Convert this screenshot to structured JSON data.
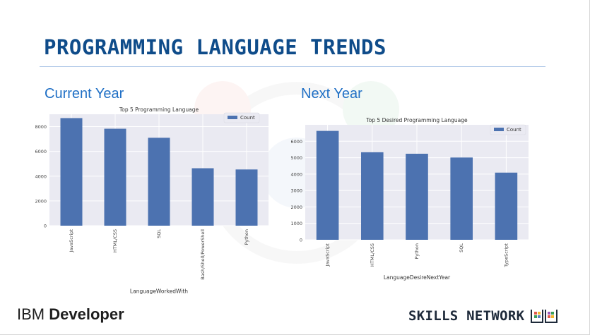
{
  "slide": {
    "title": "PROGRAMMING LANGUAGE TRENDS",
    "title_color": "#0f4c8a",
    "accent_color": "#1f6fc5",
    "left_label": "Current Year",
    "right_label": "Next Year"
  },
  "footer": {
    "brand_ibm": "IBM",
    "brand_developer": "Developer",
    "skills_network": "SKILLS NETWORK",
    "logo_icon": "skills-network-book-icon"
  },
  "chart_data": [
    {
      "type": "bar",
      "title": "Top 5 Programming Language",
      "xlabel": "LanguageWorkedWith",
      "ylabel": "",
      "categories": [
        "JavaScript",
        "HTML/CSS",
        "SQL",
        "Bash/Shell/PowerShell",
        "Python"
      ],
      "series": [
        {
          "name": "Count",
          "values": [
            8690,
            7830,
            7100,
            4640,
            4540
          ]
        }
      ],
      "ylim": [
        0,
        9000
      ],
      "yticks": [
        0,
        2000,
        4000,
        6000,
        8000
      ],
      "grid": true,
      "legend": "top-right",
      "bar_color": "#4c72b0",
      "background": "#eaeaf2"
    },
    {
      "type": "bar",
      "title": "Top 5 Desired Programming Language",
      "xlabel": "LanguageDesireNextYear",
      "ylabel": "",
      "categories": [
        "JavaScript",
        "HTML/CSS",
        "Python",
        "SQL",
        "TypeScript"
      ],
      "series": [
        {
          "name": "Count",
          "values": [
            6630,
            5330,
            5240,
            5010,
            4090
          ]
        }
      ],
      "ylim": [
        0,
        7000
      ],
      "yticks": [
        0,
        1000,
        2000,
        3000,
        4000,
        5000,
        6000
      ],
      "grid": true,
      "legend": "top-right",
      "bar_color": "#4c72b0",
      "background": "#eaeaf2"
    }
  ]
}
